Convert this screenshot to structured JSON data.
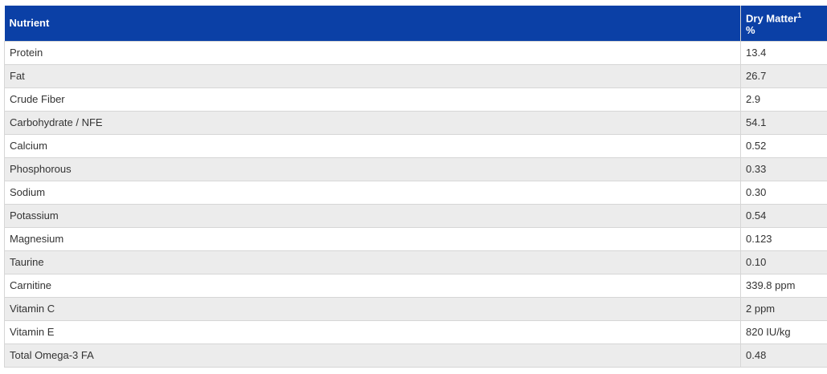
{
  "header": {
    "columns": [
      "Nutrient",
      {
        "label": "Dry Matter",
        "footnote": "1",
        "unit": "%"
      }
    ]
  },
  "table": {
    "rows": [
      [
        "Protein",
        "13.4"
      ],
      [
        "Fat",
        "26.7"
      ],
      [
        "Crude Fiber",
        "2.9"
      ],
      [
        "Carbohydrate / NFE",
        "54.1"
      ],
      [
        "Calcium",
        "0.52"
      ],
      [
        "Phosphorous",
        "0.33"
      ],
      [
        "Sodium",
        "0.30"
      ],
      [
        "Potassium",
        "0.54"
      ],
      [
        "Magnesium",
        "0.123"
      ],
      [
        "Taurine",
        "0.10"
      ],
      [
        "Carnitine",
        "339.8 ppm"
      ],
      [
        "Vitamin C",
        "2 ppm"
      ],
      [
        "Vitamin E",
        "820 IU/kg"
      ],
      [
        "Total Omega-3 FA",
        "0.48"
      ]
    ]
  }
}
